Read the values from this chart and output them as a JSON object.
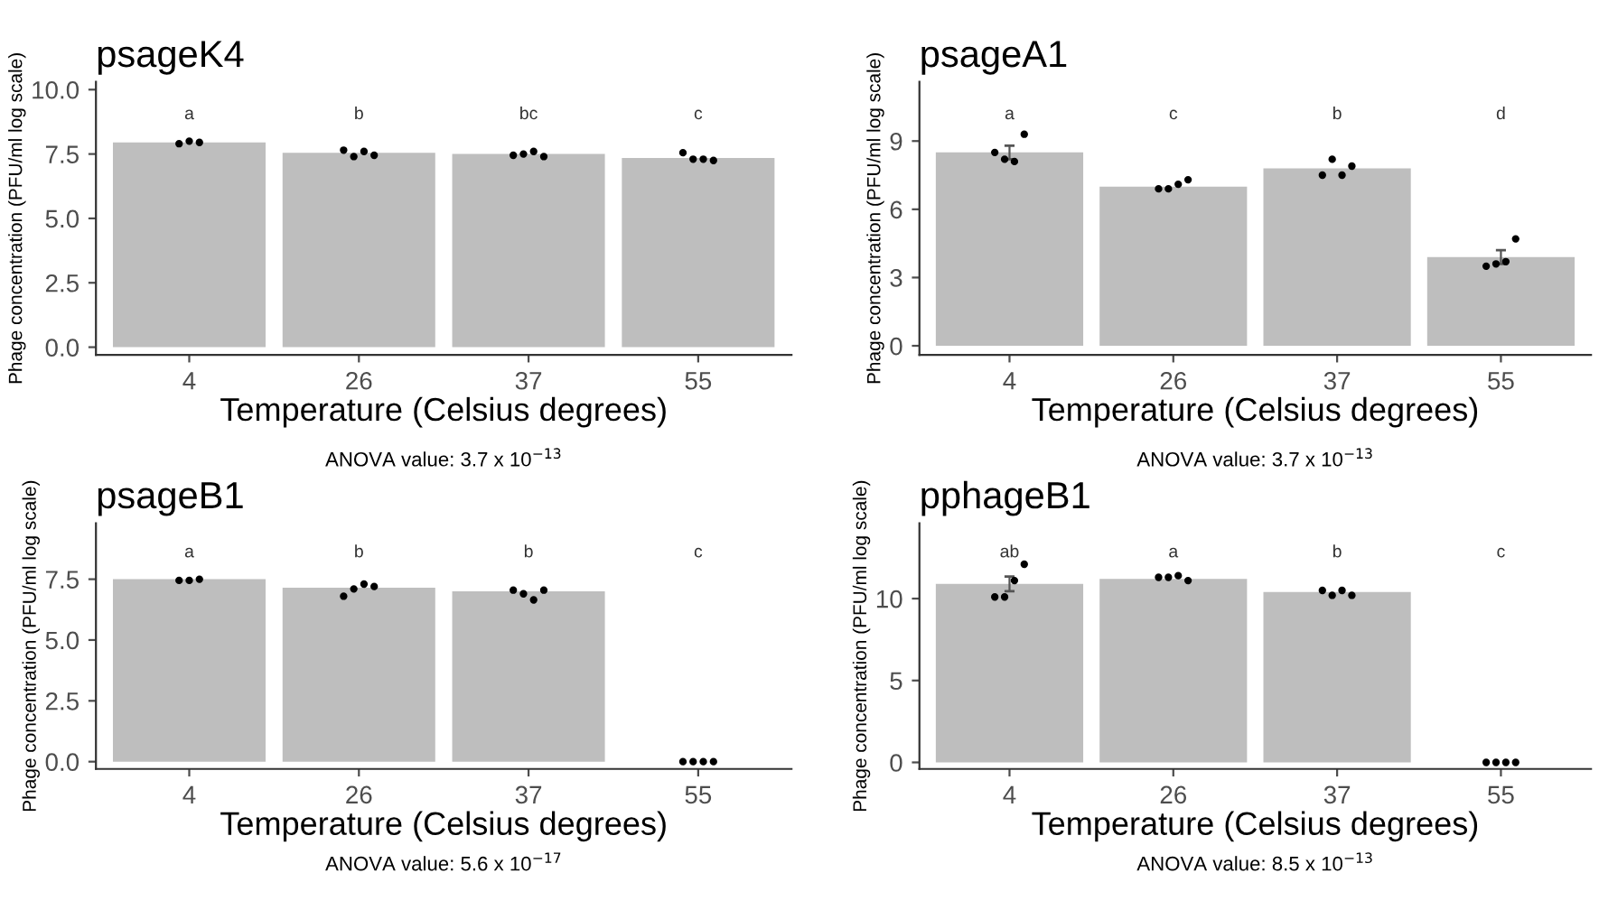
{
  "chart_data": [
    {
      "type": "bar",
      "title": "psageK4",
      "xlabel": "Temperature (Celsius degrees)",
      "ylabel": "Phage concentration (PFU/ml log scale)",
      "categories": [
        "4",
        "26",
        "37",
        "55"
      ],
      "series": [
        {
          "type": "bar",
          "color": "#bebebe",
          "values": [
            7.95,
            7.55,
            7.5,
            7.35
          ]
        },
        {
          "type": "scatter",
          "color": "#000000",
          "x": [
            "4",
            "4",
            "4",
            "26",
            "26",
            "26",
            "26",
            "37",
            "37",
            "37",
            "37",
            "55",
            "55",
            "55",
            "55"
          ],
          "values": [
            7.9,
            8.0,
            7.95,
            7.65,
            7.4,
            7.6,
            7.45,
            7.45,
            7.5,
            7.6,
            7.4,
            7.55,
            7.3,
            7.3,
            7.25
          ]
        }
      ],
      "ylim": [
        -0.3,
        10.3
      ],
      "yticks": [
        {
          "value": 0,
          "label": "0.0"
        },
        {
          "value": 2.5,
          "label": "2.5"
        },
        {
          "value": 5,
          "label": "5.0"
        },
        {
          "value": 7.5,
          "label": "7.5"
        },
        {
          "value": 10,
          "label": "10.0"
        }
      ],
      "annotations": [
        "a",
        "b",
        "bc",
        "c",
        "ANOVA value: 3.7 x 10$^{−13}$"
      ],
      "grid": false,
      "marker": "circle"
    },
    {
      "type": "bar",
      "title": "psageA1",
      "xlabel": "Temperature (Celsius degrees)",
      "ylabel": "Phage concentration (PFU/ml log scale)",
      "categories": [
        "4",
        "26",
        "37",
        "55"
      ],
      "series": [
        {
          "type": "bar",
          "color": "#bebebe",
          "values": [
            8.5,
            7.0,
            7.8,
            3.9
          ],
          "errors": [
            0.3,
            null,
            null,
            0.3
          ]
        },
        {
          "type": "scatter",
          "color": "#000000",
          "x": [
            "4",
            "4",
            "4",
            "4",
            "26",
            "26",
            "26",
            "26",
            "37",
            "37",
            "37",
            "37",
            "55",
            "55",
            "55",
            "55"
          ],
          "values": [
            8.5,
            8.2,
            8.1,
            9.3,
            6.9,
            6.9,
            7.1,
            7.3,
            7.5,
            8.2,
            7.5,
            7.9,
            3.5,
            3.6,
            3.7,
            4.7
          ]
        }
      ],
      "ylim": [
        -0.4,
        11.6
      ],
      "yticks": [
        0,
        3,
        6,
        9
      ],
      "annotations": [
        "a",
        "c",
        "b",
        "d",
        "ANOVA value: 3.7 x 10$^{−13}$"
      ],
      "grid": false,
      "marker": "circle"
    },
    {
      "type": "bar",
      "title": "psageB1",
      "xlabel": "Temperature (Celsius degrees)",
      "ylabel": "Phage concentration (PFU/ml log scale)",
      "categories": [
        "4",
        "26",
        "37",
        "55"
      ],
      "series": [
        {
          "type": "bar",
          "color": "#bebebe",
          "values": [
            7.5,
            7.15,
            7.0,
            0
          ]
        },
        {
          "type": "scatter",
          "color": "#000000",
          "x": [
            "4",
            "4",
            "4",
            "26",
            "26",
            "26",
            "26",
            "37",
            "37",
            "37",
            "37",
            "55",
            "55",
            "55",
            "55"
          ],
          "values": [
            7.45,
            7.45,
            7.5,
            6.8,
            7.1,
            7.3,
            7.2,
            7.05,
            6.9,
            6.65,
            7.05,
            0,
            0,
            0,
            0
          ]
        }
      ],
      "ylim": [
        -0.3,
        9.8
      ],
      "yticks": [
        {
          "value": 0,
          "label": "0.0"
        },
        {
          "value": 2.5,
          "label": "2.5"
        },
        {
          "value": 5,
          "label": "5.0"
        },
        {
          "value": 7.5,
          "label": "7.5"
        }
      ],
      "annotations": [
        "a",
        "b",
        "b",
        "c",
        "ANOVA value: 5.6 x 10$^{−17}$"
      ],
      "grid": false,
      "marker": "circle"
    },
    {
      "type": "bar",
      "title": "pphageB1",
      "xlabel": "Temperature (Celsius degrees)",
      "ylabel": "Phage concentration (PFU/ml log scale)",
      "categories": [
        "4",
        "26",
        "37",
        "55"
      ],
      "series": [
        {
          "type": "bar",
          "color": "#bebebe",
          "values": [
            10.9,
            11.2,
            10.4,
            0
          ],
          "errors": [
            0.45,
            null,
            null,
            null
          ]
        },
        {
          "type": "scatter",
          "color": "#000000",
          "x": [
            "4",
            "4",
            "4",
            "4",
            "26",
            "26",
            "26",
            "26",
            "37",
            "37",
            "37",
            "37",
            "55",
            "55",
            "55",
            "55"
          ],
          "values": [
            10.1,
            10.1,
            11.1,
            12.1,
            11.3,
            11.3,
            11.4,
            11.1,
            10.5,
            10.2,
            10.5,
            10.2,
            0,
            0,
            0,
            0
          ]
        }
      ],
      "ylim": [
        -0.4,
        14.6
      ],
      "yticks": [
        0,
        5,
        10
      ],
      "annotations": [
        "ab",
        "a",
        "b",
        "c",
        "ANOVA value: 8.5 x 10$^{−13}$"
      ],
      "grid": false,
      "marker": "circle"
    }
  ]
}
